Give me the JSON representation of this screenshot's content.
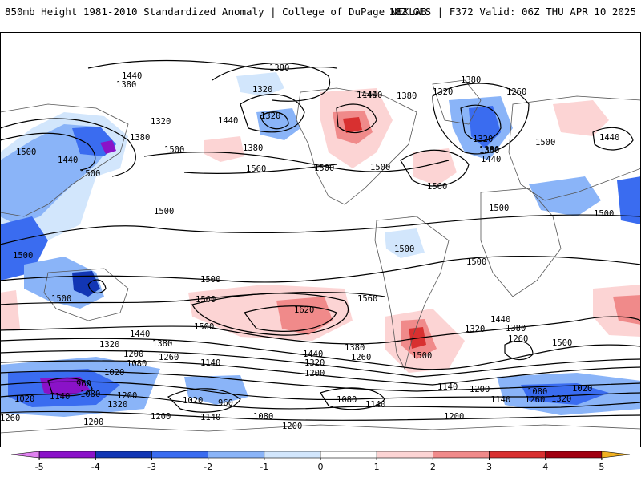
{
  "header": {
    "title_left": "850mb Height 1981-2010 Standardized Anomaly | College of DuPage NEXLAB",
    "title_right": "18Z GFS | F372 Valid: 06Z THU APR 10 2025"
  },
  "colorbar": {
    "ticks": [
      {
        "label": "-5",
        "value": -5
      },
      {
        "label": "-4",
        "value": -4
      },
      {
        "label": "-3",
        "value": -3
      },
      {
        "label": "-2",
        "value": -2
      },
      {
        "label": "-1",
        "value": -1
      },
      {
        "label": "0",
        "value": 0
      },
      {
        "label": "1",
        "value": 1
      },
      {
        "label": "2",
        "value": 2
      },
      {
        "label": "3",
        "value": 3
      },
      {
        "label": "4",
        "value": 4
      },
      {
        "label": "5",
        "value": 5
      }
    ],
    "range": [
      -5.5,
      5.5
    ],
    "bins": [
      {
        "from": -5.5,
        "to": -5,
        "color": "#e080f0"
      },
      {
        "from": -5,
        "to": -4,
        "color": "#8a12c8"
      },
      {
        "from": -4,
        "to": -3,
        "color": "#1236b4"
      },
      {
        "from": -3,
        "to": -2,
        "color": "#3a6cf0"
      },
      {
        "from": -2,
        "to": -1,
        "color": "#8ab4f8"
      },
      {
        "from": -1,
        "to": 0,
        "color": "#d2e6fc"
      },
      {
        "from": 0,
        "to": 1,
        "color": "#ffffff"
      },
      {
        "from": 1,
        "to": 2,
        "color": "#fcd4d4"
      },
      {
        "from": 2,
        "to": 3,
        "color": "#f08a8a"
      },
      {
        "from": 3,
        "to": 4,
        "color": "#d83030"
      },
      {
        "from": 4,
        "to": 5,
        "color": "#a00010"
      },
      {
        "from": 5,
        "to": 5.5,
        "color": "#f0b020"
      }
    ]
  },
  "contour_labels": [
    {
      "text": "1380",
      "value": 1380
    },
    {
      "text": "1440",
      "value": 1440
    },
    {
      "text": "1380",
      "value": 1380
    },
    {
      "text": "1320",
      "value": 1320
    },
    {
      "text": "1440",
      "value": 1440
    },
    {
      "text": "1380",
      "value": 1380
    },
    {
      "text": "1320",
      "value": 1320
    },
    {
      "text": "1260",
      "value": 1260
    },
    {
      "text": "1320",
      "value": 1320
    },
    {
      "text": "1380",
      "value": 1380
    },
    {
      "text": "1440",
      "value": 1440
    },
    {
      "text": "1320",
      "value": 1320
    },
    {
      "text": "1440",
      "value": 1440
    },
    {
      "text": "1380",
      "value": 1380
    },
    {
      "text": "1500",
      "value": 1500
    },
    {
      "text": "1440",
      "value": 1440
    },
    {
      "text": "1500",
      "value": 1500
    },
    {
      "text": "1380",
      "value": 1380
    },
    {
      "text": "1500",
      "value": 1500
    },
    {
      "text": "1380",
      "value": 1380
    },
    {
      "text": "1560",
      "value": 1560
    },
    {
      "text": "1500",
      "value": 1500
    },
    {
      "text": "1500",
      "value": 1500
    },
    {
      "text": "1560",
      "value": 1560
    },
    {
      "text": "1320",
      "value": 1320
    },
    {
      "text": "1380",
      "value": 1380
    },
    {
      "text": "1440",
      "value": 1440
    },
    {
      "text": "1500",
      "value": 1500
    },
    {
      "text": "1440",
      "value": 1440
    },
    {
      "text": "1500",
      "value": 1500
    },
    {
      "text": "1500",
      "value": 1500
    },
    {
      "text": "1500",
      "value": 1500
    },
    {
      "text": "1500",
      "value": 1500
    },
    {
      "text": "1500",
      "value": 1500
    },
    {
      "text": "1500",
      "value": 1500
    },
    {
      "text": "1500",
      "value": 1500
    },
    {
      "text": "1500",
      "value": 1500
    },
    {
      "text": "1560",
      "value": 1560
    },
    {
      "text": "1620",
      "value": 1620
    },
    {
      "text": "1560",
      "value": 1560
    },
    {
      "text": "1500",
      "value": 1500
    },
    {
      "text": "1440",
      "value": 1440
    },
    {
      "text": "1380",
      "value": 1380
    },
    {
      "text": "1320",
      "value": 1320
    },
    {
      "text": "1260",
      "value": 1260
    },
    {
      "text": "1200",
      "value": 1200
    },
    {
      "text": "1380",
      "value": 1380
    },
    {
      "text": "1440",
      "value": 1440
    },
    {
      "text": "1260",
      "value": 1260
    },
    {
      "text": "1320",
      "value": 1320
    },
    {
      "text": "1200",
      "value": 1200
    },
    {
      "text": "1500",
      "value": 1500
    },
    {
      "text": "1440",
      "value": 1440
    },
    {
      "text": "1380",
      "value": 1380
    },
    {
      "text": "1320",
      "value": 1320
    },
    {
      "text": "1260",
      "value": 1260
    },
    {
      "text": "1500",
      "value": 1500
    },
    {
      "text": "1080",
      "value": 1080
    },
    {
      "text": "1140",
      "value": 1140
    },
    {
      "text": "1020",
      "value": 1020
    },
    {
      "text": "960",
      "value": 960
    },
    {
      "text": "1020",
      "value": 1020
    },
    {
      "text": "1140",
      "value": 1140
    },
    {
      "text": "1080",
      "value": 1080
    },
    {
      "text": "1200",
      "value": 1200
    },
    {
      "text": "1320",
      "value": 1320
    },
    {
      "text": "1260",
      "value": 1260
    },
    {
      "text": "1200",
      "value": 1200
    },
    {
      "text": "1020",
      "value": 1020
    },
    {
      "text": "960",
      "value": 960
    },
    {
      "text": "1140",
      "value": 1140
    },
    {
      "text": "1080",
      "value": 1080
    },
    {
      "text": "1200",
      "value": 1200
    },
    {
      "text": "1080",
      "value": 1080
    },
    {
      "text": "1140",
      "value": 1140
    },
    {
      "text": "1140",
      "value": 1140
    },
    {
      "text": "1200",
      "value": 1200
    },
    {
      "text": "1140",
      "value": 1140
    },
    {
      "text": "1200",
      "value": 1200
    },
    {
      "text": "1080",
      "value": 1080
    },
    {
      "text": "1020",
      "value": 1020
    },
    {
      "text": "1260",
      "value": 1260
    },
    {
      "text": "1320",
      "value": 1320
    },
    {
      "text": "1200",
      "value": 1200
    }
  ]
}
